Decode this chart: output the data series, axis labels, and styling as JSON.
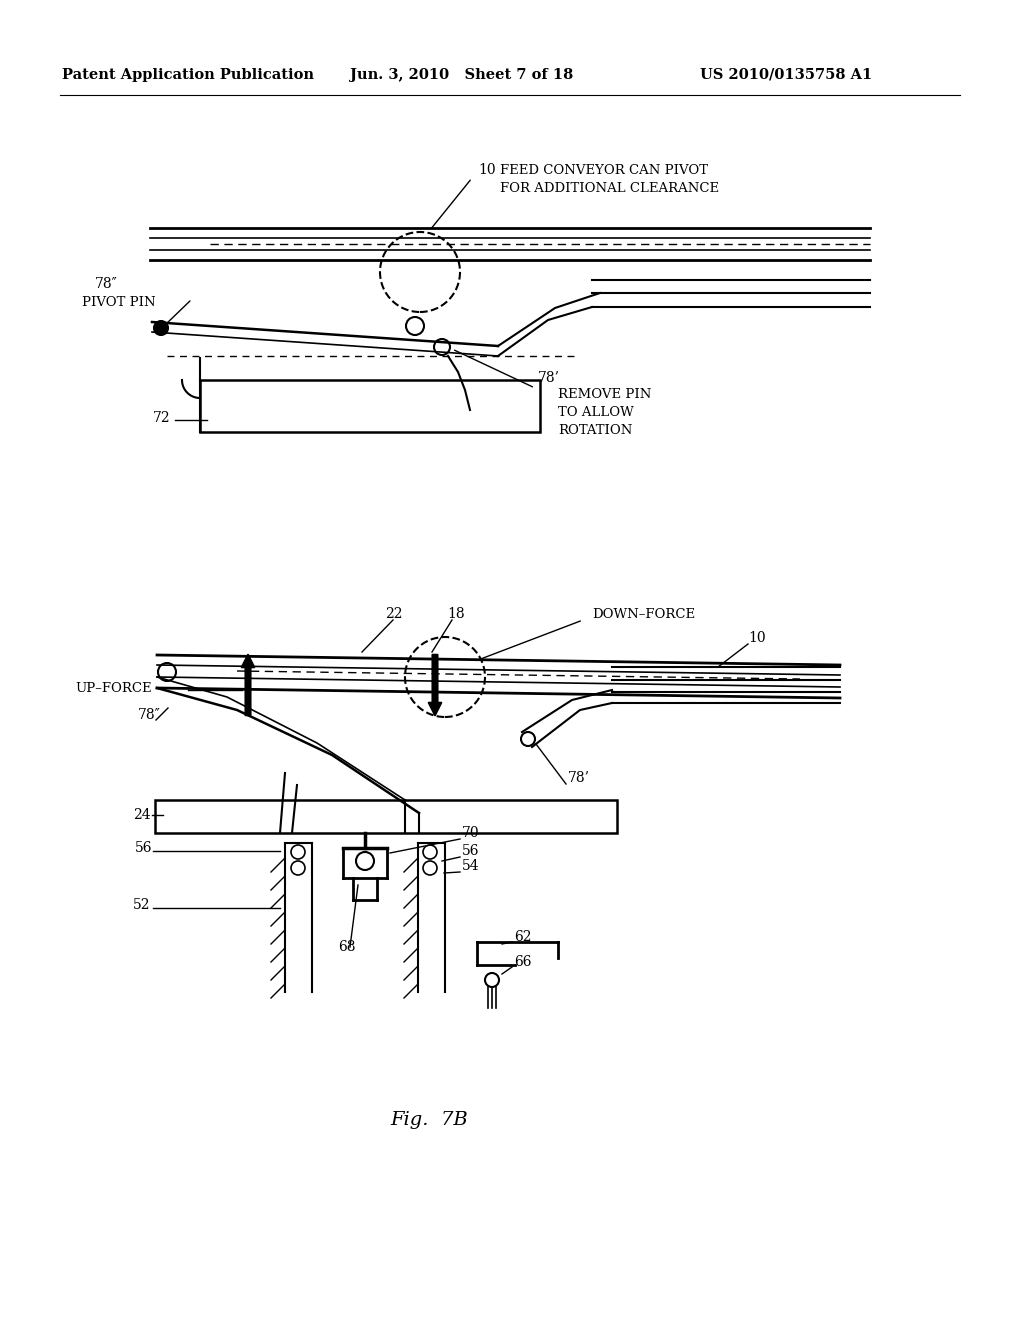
{
  "bg_color": "#ffffff",
  "header_left": "Patent Application Publication",
  "header_mid": "Jun. 3, 2010   Sheet 7 of 18",
  "header_right": "US 2010/0135758 A1",
  "figure_label": "Fig.  7B",
  "top_labels": {
    "10_text1": "FEED CONVEYOR CAN PIVOT",
    "10_text2": "FOR ADDITIONAL CLEARANCE",
    "78pp": "78″",
    "pivot_pin": "PIVOT PIN",
    "72": "72",
    "78p": "78’",
    "remove1": "REMOVE PIN",
    "remove2": "TO ALLOW",
    "remove3": "ROTATION"
  },
  "bot_labels": {
    "up_force": "UP–FORCE",
    "down_force": "DOWN–FORCE",
    "22": "22",
    "18": "18",
    "10": "10",
    "78pp": "78″",
    "24": "24",
    "78p": "78’",
    "56a": "56",
    "70": "70",
    "56b": "56",
    "54": "54",
    "52": "52",
    "68": "68",
    "62": "62",
    "66": "66"
  }
}
